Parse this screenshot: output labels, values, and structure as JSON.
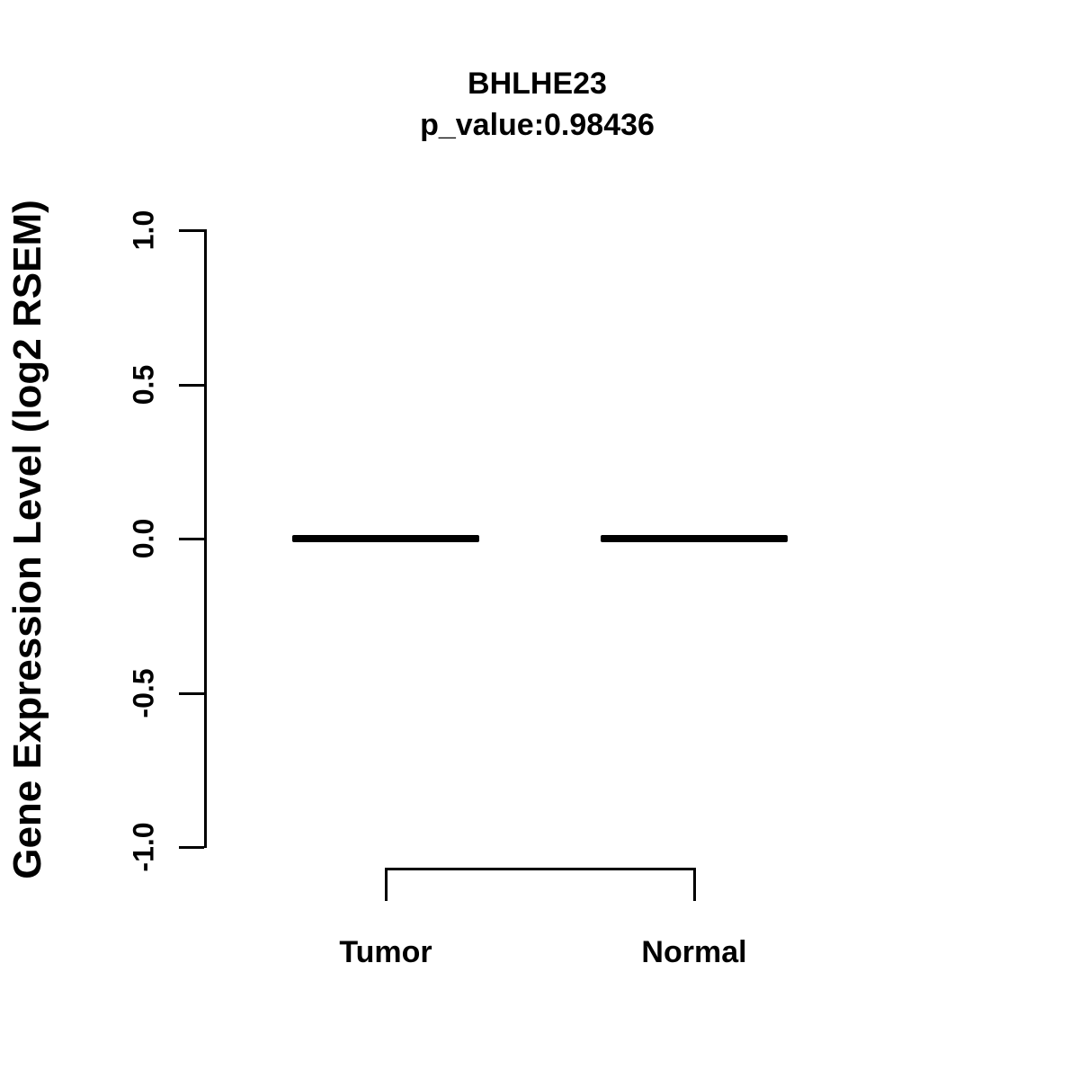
{
  "header": {
    "title": "BHLHE23",
    "subtitle": "p_value:0.98436"
  },
  "y_axis": {
    "label": "Gene Expression Level (log2 RSEM)"
  },
  "chart_data": {
    "type": "boxplot",
    "title": "BHLHE23",
    "subtitle": "p_value:0.98436",
    "xlabel": "",
    "ylabel": "Gene Expression Level (log2 RSEM)",
    "ylim": [
      -1.0,
      1.0
    ],
    "yticks": [
      {
        "value": 1.0,
        "label": "1.0"
      },
      {
        "value": 0.5,
        "label": "0.5"
      },
      {
        "value": 0.0,
        "label": "0.0"
      },
      {
        "value": -0.5,
        "label": "-0.5"
      },
      {
        "value": -1.0,
        "label": "-1.0"
      }
    ],
    "categories": [
      "Tumor",
      "Normal"
    ],
    "groups": [
      {
        "label": "Tumor",
        "median": 0.0,
        "q1": 0.0,
        "q3": 0.0,
        "whisker_low": 0.0,
        "whisker_high": 0.0
      },
      {
        "label": "Normal",
        "median": 0.0,
        "q1": 0.0,
        "q3": 0.0,
        "whisker_low": 0.0,
        "whisker_high": 0.0
      }
    ],
    "grid": false,
    "legend": "none",
    "annotations": [
      {
        "type": "comparison-bracket",
        "from": "Tumor",
        "to": "Normal"
      }
    ],
    "colors": {
      "line": "#000000",
      "text": "#000000",
      "background": "#ffffff"
    }
  }
}
